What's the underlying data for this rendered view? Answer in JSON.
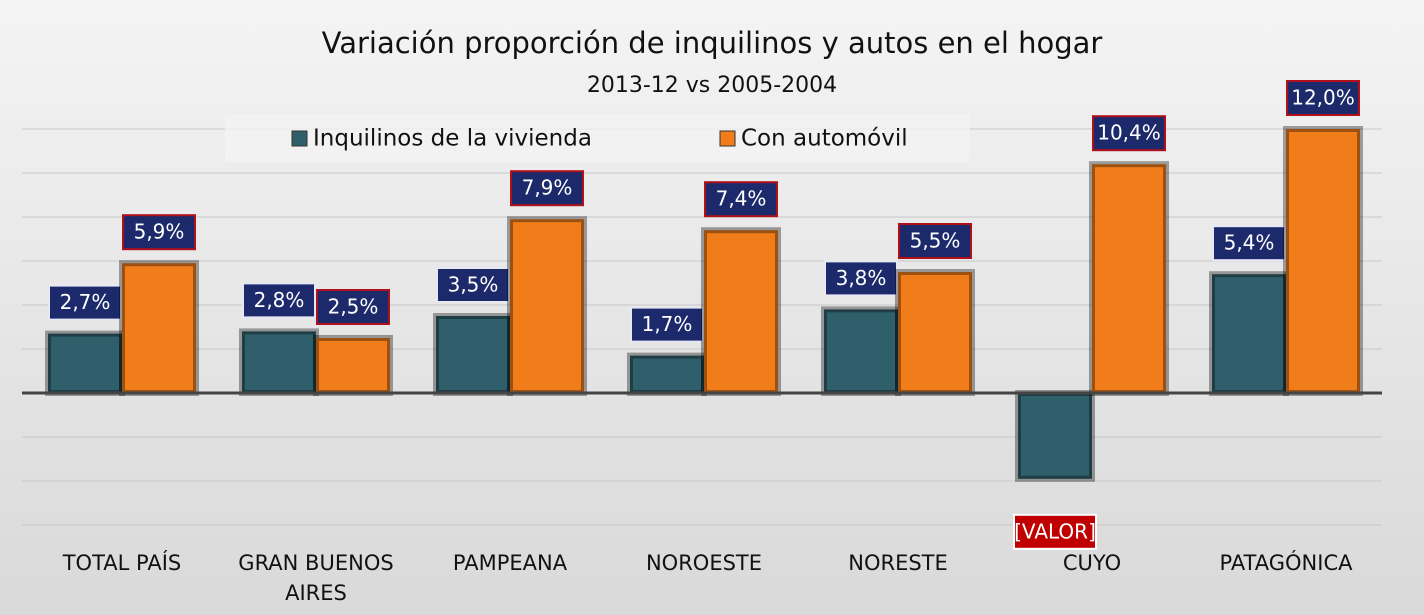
{
  "chart_data": {
    "type": "bar",
    "title": "Variación proporción de inquilinos y autos en el hogar",
    "subtitle": "2013-12 vs 2005-2004",
    "categories": [
      "TOTAL PAÍS",
      "GRAN BUENOS AIRES",
      "PAMPEANA",
      "NOROESTE",
      "NORESTE",
      "CUYO",
      "PATAGÓNICA"
    ],
    "series": [
      {
        "name": "Inquilinos de la vivienda",
        "color": "#2e5f6b",
        "values": [
          2.7,
          2.8,
          3.5,
          1.7,
          3.8,
          -3.9,
          5.4
        ],
        "value_labels": [
          "2,7%",
          "2,8%",
          "3,5%",
          "1,7%",
          "3,8%",
          "[VALOR]",
          "5,4%"
        ]
      },
      {
        "name": "Con automóvil",
        "color": "#f07d1a",
        "values": [
          5.9,
          2.5,
          7.9,
          7.4,
          5.5,
          10.4,
          12.0
        ],
        "value_labels": [
          "5,9%",
          "2,5%",
          "7,9%",
          "7,4%",
          "5,5%",
          "10,4%",
          "12,0%"
        ]
      }
    ],
    "ylim": [
      -6,
      14
    ],
    "yticks": [
      -6,
      -4,
      -2,
      0,
      2,
      4,
      6,
      8,
      10,
      12
    ],
    "grid": true,
    "legend": "top"
  }
}
